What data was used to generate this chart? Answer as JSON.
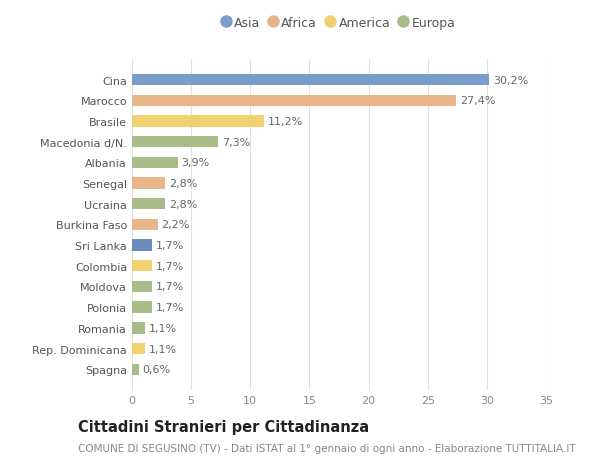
{
  "categories": [
    "Cina",
    "Marocco",
    "Brasile",
    "Macedonia d/N.",
    "Albania",
    "Senegal",
    "Ucraina",
    "Burkina Faso",
    "Sri Lanka",
    "Colombia",
    "Moldova",
    "Polonia",
    "Romania",
    "Rep. Dominicana",
    "Spagna"
  ],
  "values": [
    30.2,
    27.4,
    11.2,
    7.3,
    3.9,
    2.8,
    2.8,
    2.2,
    1.7,
    1.7,
    1.7,
    1.7,
    1.1,
    1.1,
    0.6
  ],
  "labels": [
    "30,2%",
    "27,4%",
    "11,2%",
    "7,3%",
    "3,9%",
    "2,8%",
    "2,8%",
    "2,2%",
    "1,7%",
    "1,7%",
    "1,7%",
    "1,7%",
    "1,1%",
    "1,1%",
    "0,6%"
  ],
  "colors": [
    "#7b9dc9",
    "#e8b48a",
    "#f0d070",
    "#a8bc88",
    "#a8bc88",
    "#e8b48a",
    "#a8bc88",
    "#e8b48a",
    "#6b8cba",
    "#f0d070",
    "#a8bc88",
    "#a8bc88",
    "#a8bc88",
    "#f0d070",
    "#a8bc88"
  ],
  "continent_colors": {
    "Asia": "#7b9dc9",
    "Africa": "#e8b48a",
    "America": "#f0d070",
    "Europa": "#a8bc88"
  },
  "legend_labels": [
    "Asia",
    "Africa",
    "America",
    "Europa"
  ],
  "title": "Cittadini Stranieri per Cittadinanza",
  "subtitle": "COMUNE DI SEGUSINO (TV) - Dati ISTAT al 1° gennaio di ogni anno - Elaborazione TUTTITALIA.IT",
  "xlim": [
    0,
    35
  ],
  "xticks": [
    0,
    5,
    10,
    15,
    20,
    25,
    30,
    35
  ],
  "background_color": "#ffffff",
  "grid_color": "#e0e0e0",
  "bar_height": 0.55,
  "label_fontsize": 8,
  "tick_fontsize": 8,
  "title_fontsize": 10.5,
  "subtitle_fontsize": 7.5
}
